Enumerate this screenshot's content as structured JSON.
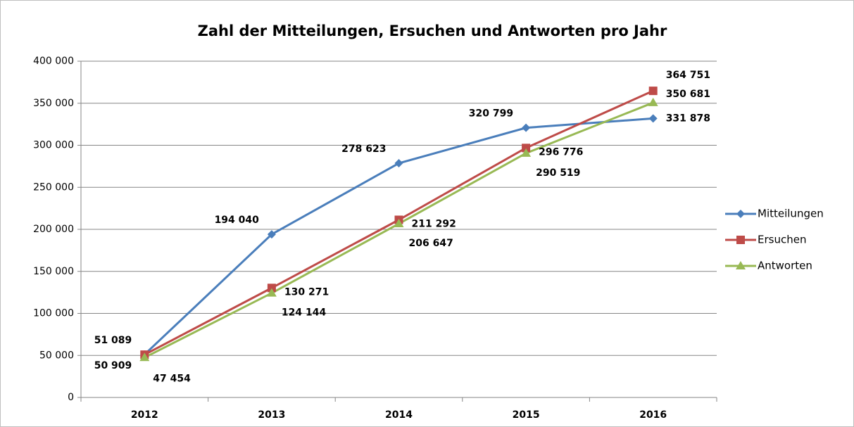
{
  "chart_data": {
    "type": "line",
    "title": "Zahl der Mitteilungen, Ersuchen und Antworten pro Jahr",
    "categories": [
      "2012",
      "2013",
      "2014",
      "2015",
      "2016"
    ],
    "series": [
      {
        "name": "Mitteilungen",
        "color": "#4a7ebb",
        "marker": "diamond",
        "values": [
          51089,
          194040,
          278623,
          320799,
          331878
        ],
        "value_labels": [
          "51 089",
          "194 040",
          "278 623",
          "320 799",
          "331 878"
        ]
      },
      {
        "name": "Ersuchen",
        "color": "#be4b48",
        "marker": "square",
        "values": [
          50909,
          130271,
          211292,
          296776,
          364751
        ],
        "value_labels": [
          "50 909",
          "130 271",
          "211 292",
          "296 776",
          "364 751"
        ]
      },
      {
        "name": "Antworten",
        "color": "#98b954",
        "marker": "triangle",
        "values": [
          47454,
          124144,
          206647,
          290519,
          350681
        ],
        "value_labels": [
          "47 454",
          "124 144",
          "206 647",
          "290 519",
          "350 681"
        ]
      }
    ],
    "ylim": [
      0,
      400000
    ],
    "yticks": [
      0,
      {
        "value": 50000,
        "label": "50 000"
      },
      {
        "value": 100000,
        "label": "100 000"
      },
      {
        "value": 150000,
        "label": "150 000"
      },
      {
        "value": 200000,
        "label": "200 000"
      },
      {
        "value": 250000,
        "label": "250 000"
      },
      {
        "value": 300000,
        "label": "300 000"
      },
      {
        "value": 350000,
        "label": "350 000"
      },
      {
        "value": 400000,
        "label": "400 000"
      }
    ],
    "grid": true,
    "legend": "right"
  }
}
